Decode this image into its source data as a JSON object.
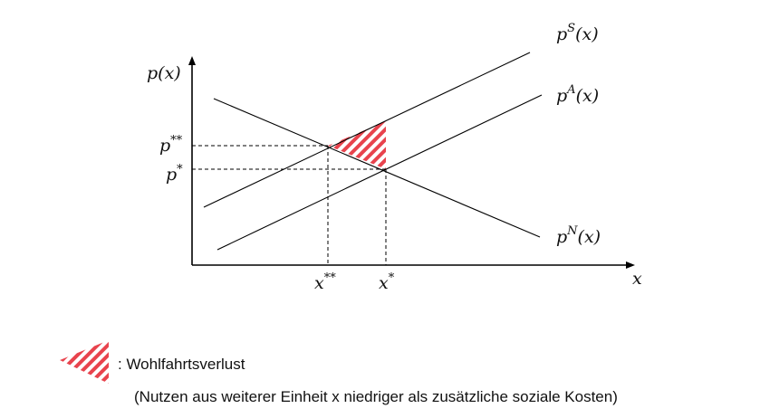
{
  "diagram": {
    "y_axis_label": "p(x)",
    "x_axis_label": "x",
    "curves": {
      "social_cost": {
        "base": "p",
        "sup": "S",
        "arg": "(x)"
      },
      "private_supply": {
        "base": "p",
        "sup": "A",
        "arg": "(x)"
      },
      "demand": {
        "base": "p",
        "sup": "N",
        "arg": "(x)"
      }
    },
    "ticks": {
      "p_double_star": {
        "base": "p",
        "sup": "**"
      },
      "p_star": {
        "base": "p",
        "sup": "*"
      },
      "x_double_star": {
        "base": "x",
        "sup": "**"
      },
      "x_star": {
        "base": "x",
        "sup": "*"
      }
    },
    "hatch_color": "#e8434d"
  },
  "legend": {
    "label": ": Wohlfahrtsverlust",
    "note": "(Nutzen aus weiterer Einheit x niedriger als zusätzliche soziale Kosten)"
  }
}
